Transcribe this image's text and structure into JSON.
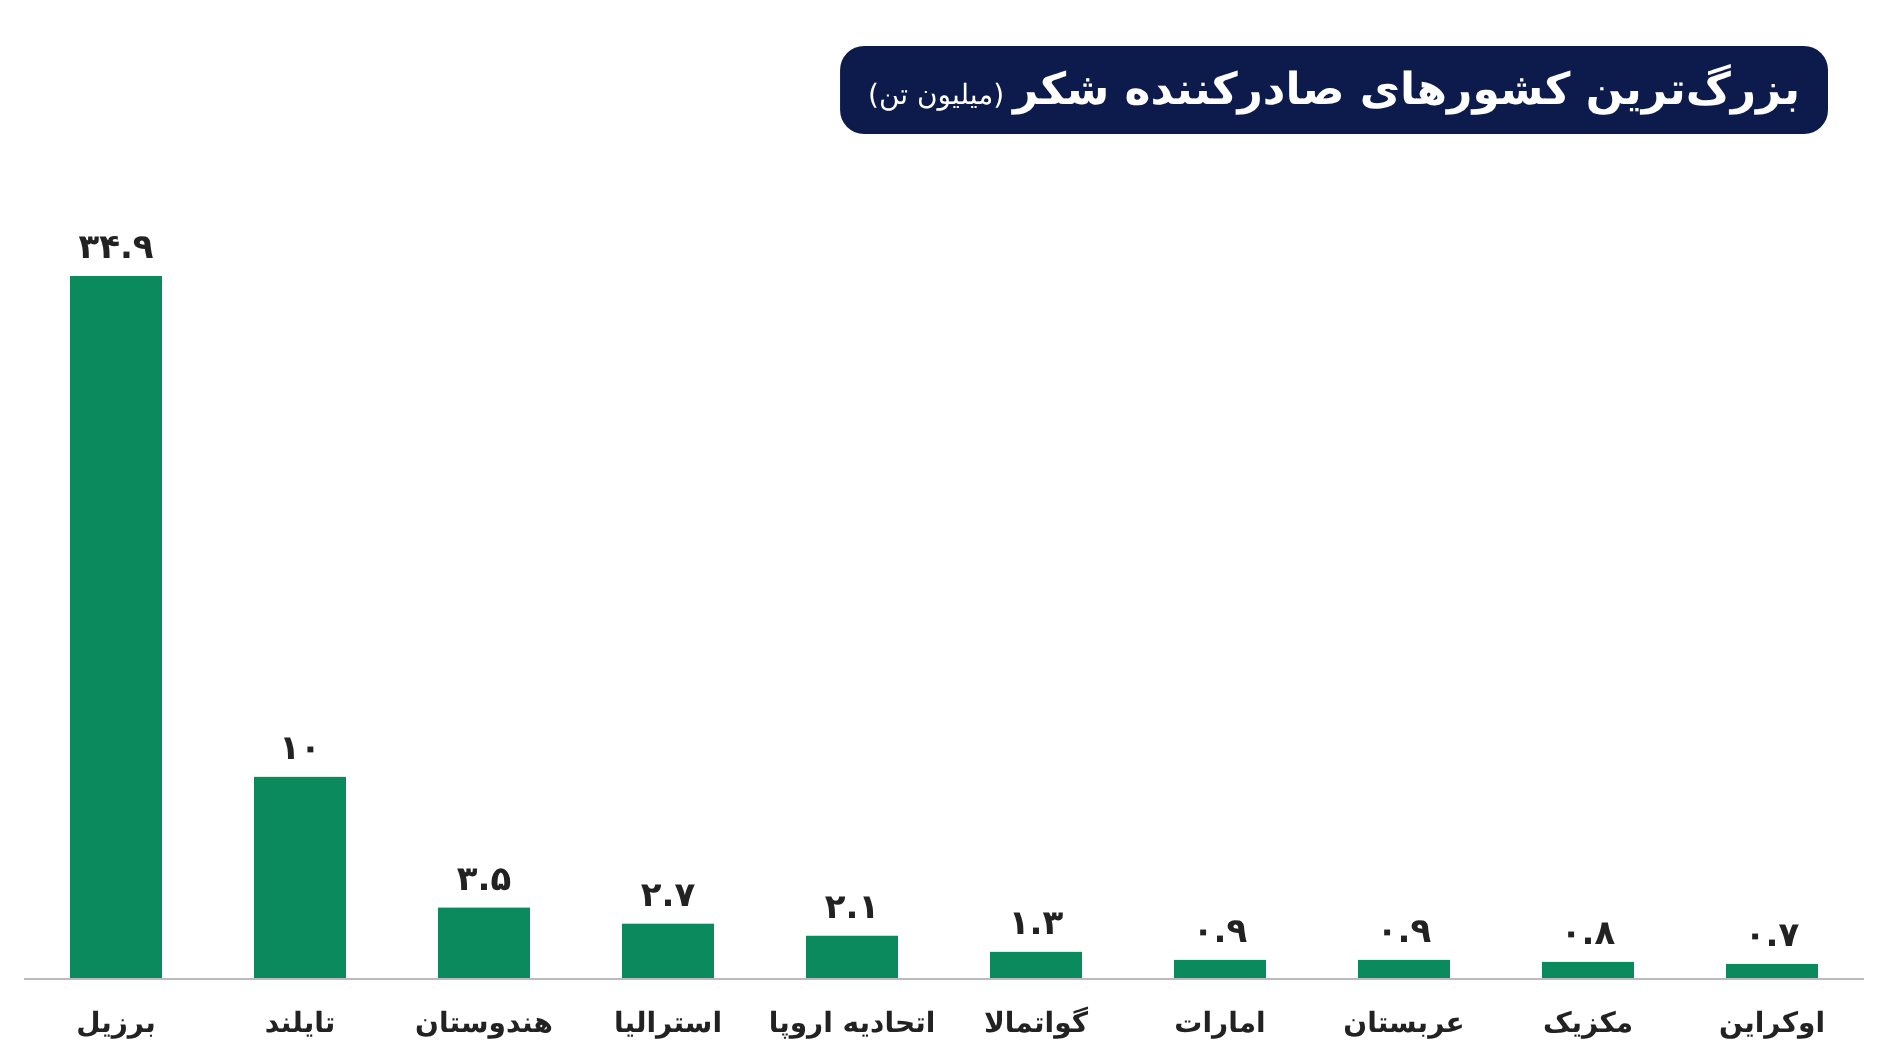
{
  "chart_data": {
    "type": "bar",
    "title": "بزرگ‌ترین کشورهای صادرکننده شکر",
    "subtitle": "(میلیون تن)",
    "categories": [
      "برزیل",
      "تایلند",
      "هندوستان",
      "استرالیا",
      "اتحادیه اروپا",
      "گواتمالا",
      "امارات",
      "عربستان",
      "مکزیک",
      "اوکراین"
    ],
    "values": [
      34.9,
      10,
      3.5,
      2.7,
      2.1,
      1.3,
      0.9,
      0.9,
      0.8,
      0.7
    ],
    "value_labels": [
      "۳۴.۹",
      "۱۰",
      "۳.۵",
      "۲.۷",
      "۲.۱",
      "۱.۳",
      "۰.۹",
      "۰.۹",
      "۰.۸",
      "۰.۷"
    ],
    "color": "#0b8a5e"
  }
}
